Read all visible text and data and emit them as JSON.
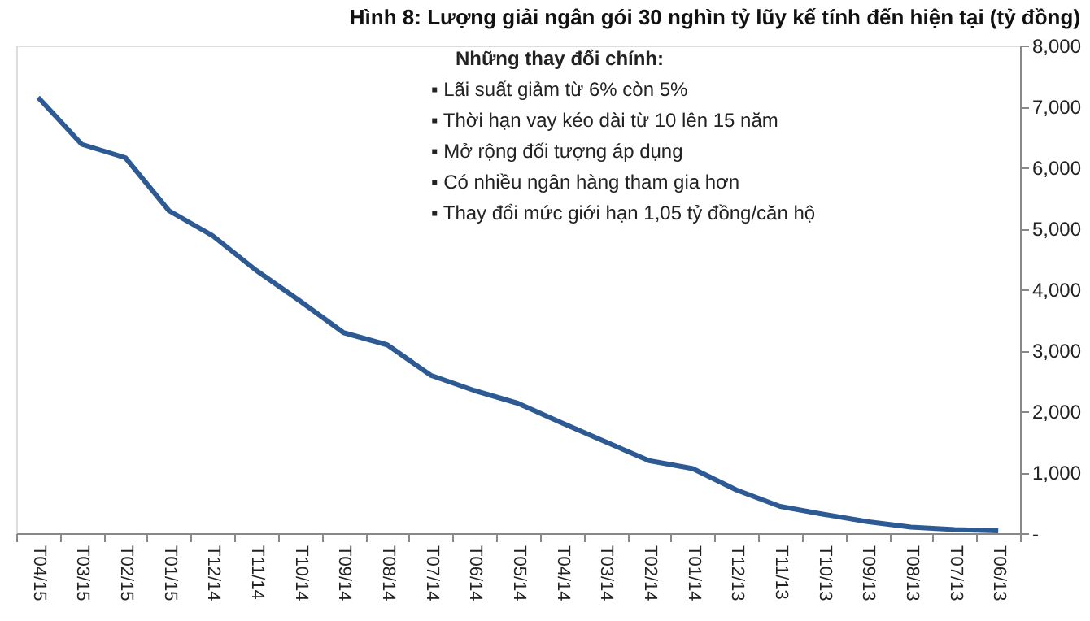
{
  "chart_data": {
    "type": "line",
    "title": "Hình 8: Lượng giải ngân gói 30 nghìn tỷ lũy kế tính đến hiện tại (tỷ đồng)",
    "categories": [
      "T04/15",
      "T03/15",
      "T02/15",
      "T01/15",
      "T12/14",
      "T11/14",
      "T10/14",
      "T09/14",
      "T08/14",
      "T07/14",
      "T06/14",
      "T05/14",
      "T04/14",
      "T03/14",
      "T02/14",
      "T01/14",
      "T12/13",
      "T11/13",
      "T10/13",
      "T09/13",
      "T08/13",
      "T07/13",
      "T06/13"
    ],
    "series": [
      {
        "color": "#2e5a94",
        "values": [
          7150,
          6380,
          6160,
          5290,
          4880,
          4310,
          3810,
          3290,
          3090,
          2590,
          2340,
          2130,
          1810,
          1500,
          1190,
          1060,
          710,
          440,
          310,
          190,
          100,
          60,
          40
        ]
      }
    ],
    "ylim": [
      0,
      8000
    ],
    "yticks": [
      {
        "value": 0,
        "label": "-"
      },
      {
        "value": 1000,
        "label": "1,000"
      },
      {
        "value": 2000,
        "label": "2,000"
      },
      {
        "value": 3000,
        "label": "3,000"
      },
      {
        "value": 4000,
        "label": "4,000"
      },
      {
        "value": 5000,
        "label": "5,000"
      },
      {
        "value": 6000,
        "label": "6,000"
      },
      {
        "value": 7000,
        "label": "7,000"
      },
      {
        "value": 8000,
        "label": "8,000"
      }
    ],
    "grid": false,
    "marker": "none",
    "line_style": "solid",
    "annotations": [
      "Những thay đổi chính:",
      "▪   Lãi suất giảm từ 6% còn 5%",
      "▪   Thời hạn vay kéo dài từ 10 lên 15 năm",
      "▪   Mở rộng đối tượng áp dụng",
      "▪   Có nhiều ngân hàng tham gia hơn",
      "▪   Thay đổi mức giới hạn 1,05 tỷ đồng/căn hộ"
    ]
  }
}
